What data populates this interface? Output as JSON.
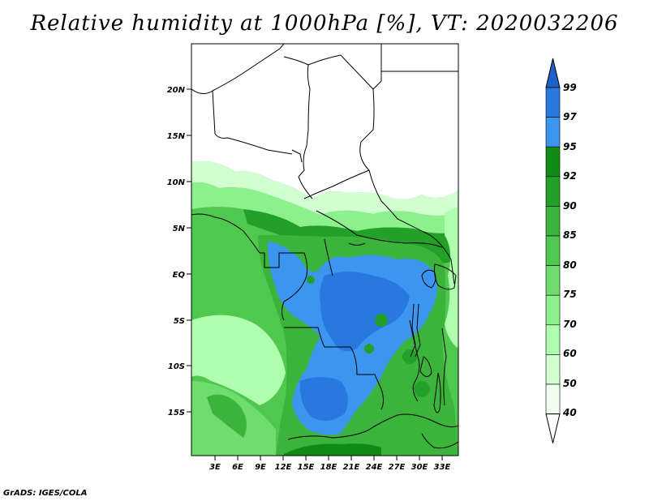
{
  "title": "Relative humidity at 1000hPa [%], VT: 2020032206",
  "credit": "GrADS: IGES/COLA",
  "map": {
    "lon_ticks": [
      "3E",
      "6E",
      "9E",
      "12E",
      "15E",
      "18E",
      "21E",
      "24E",
      "27E",
      "30E",
      "33E"
    ],
    "lat_ticks": [
      "20N",
      "15N",
      "10N",
      "5N",
      "EQ",
      "5S",
      "10S",
      "15S"
    ]
  },
  "colorbar": {
    "labels": [
      "99",
      "97",
      "95",
      "92",
      "90",
      "85",
      "80",
      "75",
      "70",
      "60",
      "50",
      "40"
    ],
    "colors": [
      "#1e60c8",
      "#2878e0",
      "#3c96f0",
      "#0f8c14",
      "#23a028",
      "#3cb43c",
      "#50c850",
      "#6edc6e",
      "#8cf08c",
      "#afffaf",
      "#d2ffd2",
      "#f0fff0"
    ]
  }
}
